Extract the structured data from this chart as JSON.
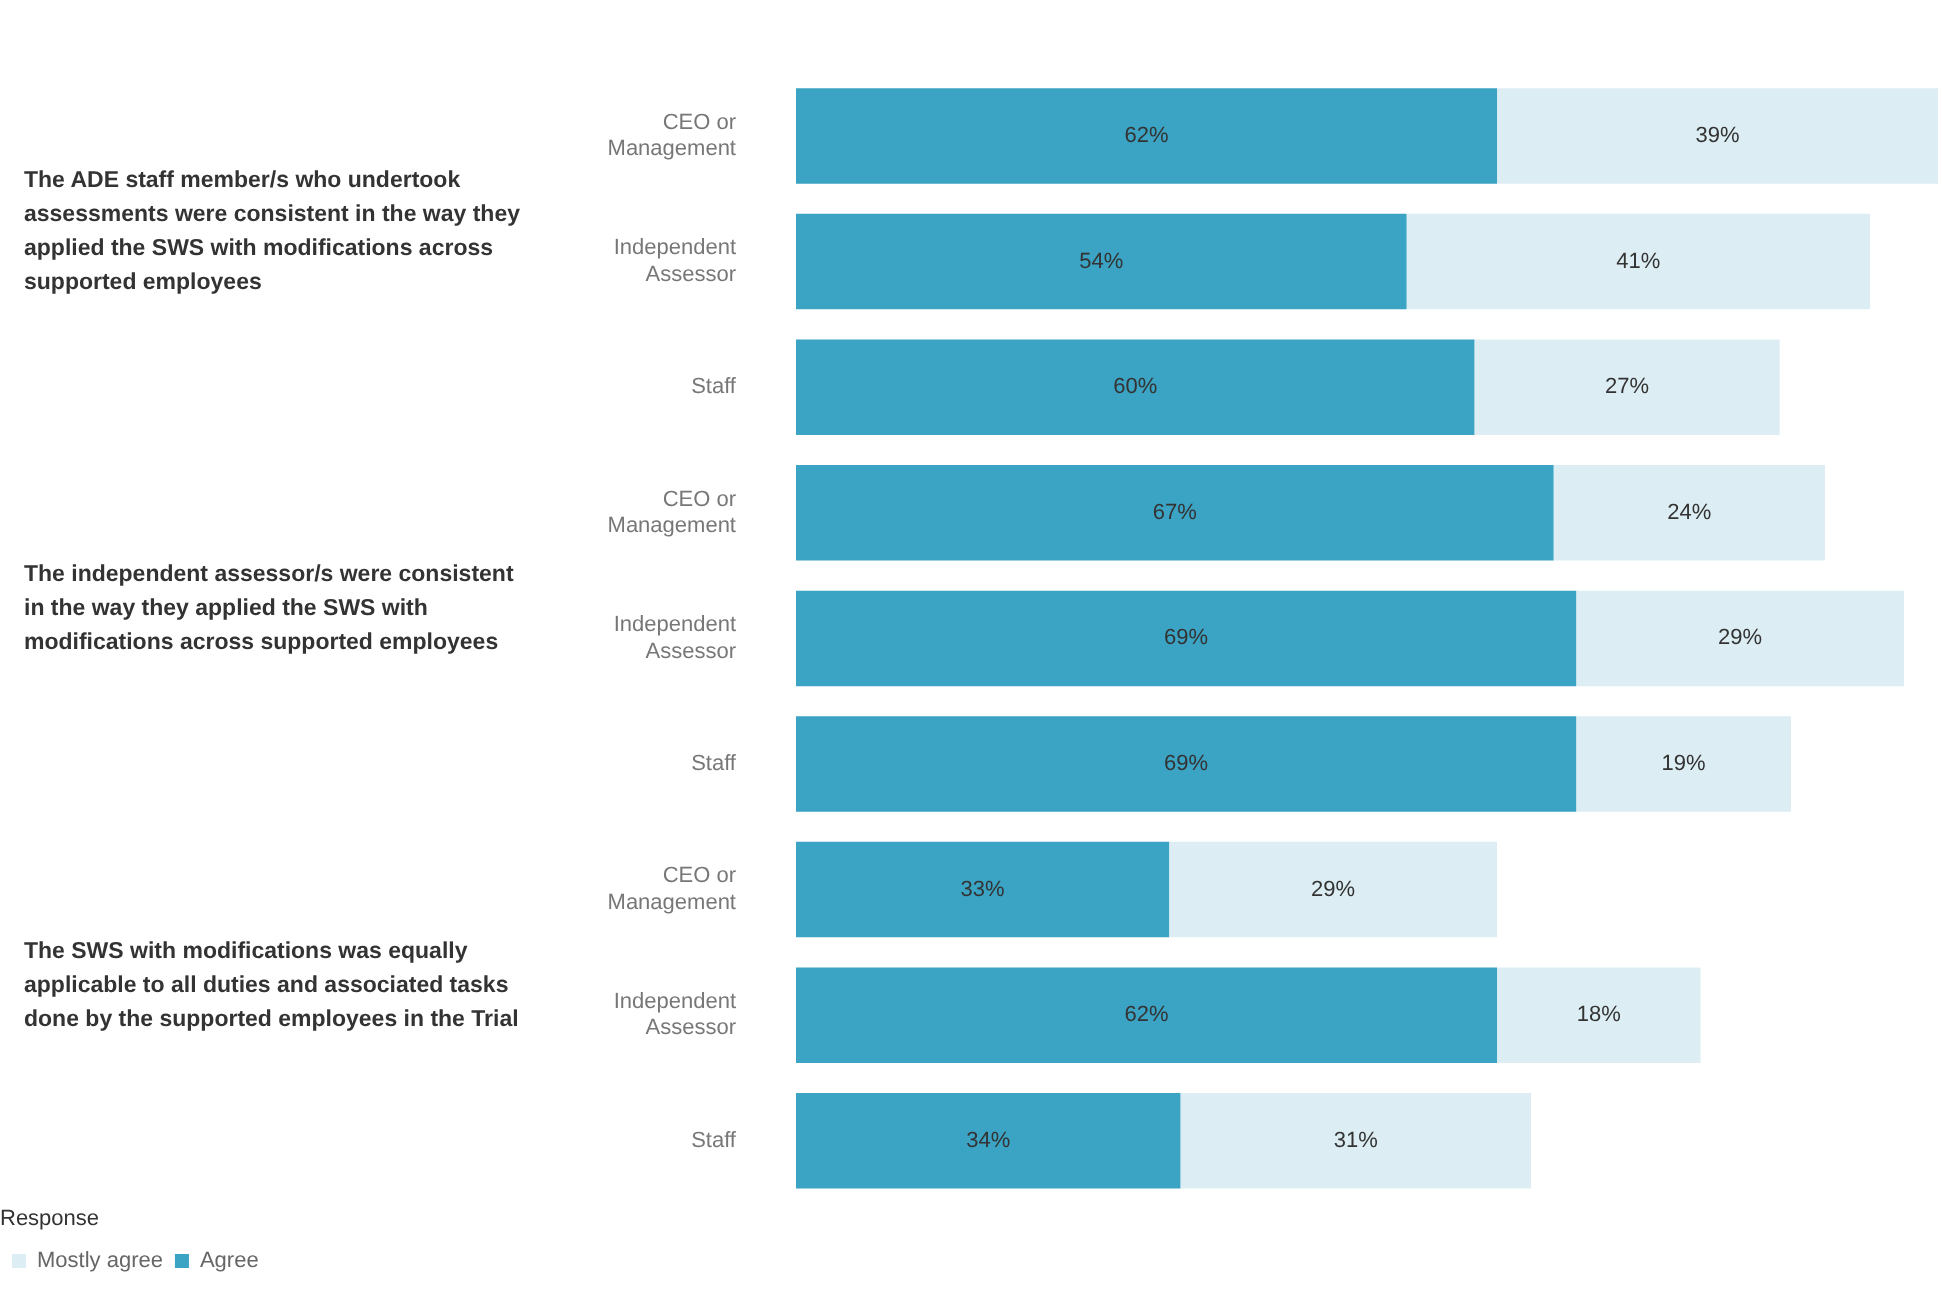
{
  "chart_data": {
    "type": "bar",
    "orientation": "horizontal",
    "stacked": true,
    "categories": [
      "CEO or Management",
      "Independent Assessor",
      "Staff",
      "CEO or Management",
      "Independent Assessor",
      "Staff",
      "CEO or Management",
      "Independent Assessor",
      "Staff"
    ],
    "series": [
      {
        "name": "Agree",
        "color": "#3ba3c3",
        "values": [
          62,
          54,
          60,
          67,
          69,
          69,
          33,
          62,
          34
        ],
        "value_labels": [
          "62%",
          "54%",
          "60%",
          "67%",
          "69%",
          "69%",
          "33%",
          "62%",
          "34%"
        ]
      },
      {
        "name": "Mostly agree",
        "color": "#dcedf3",
        "values": [
          39,
          41,
          27,
          24,
          29,
          19,
          29,
          18,
          31
        ],
        "value_labels": [
          "39%",
          "41%",
          "27%",
          "24%",
          "29%",
          "19%",
          "29%",
          "18%",
          "31%"
        ]
      }
    ],
    "tick_labels": "y",
    "grid": false,
    "legend": "bottom left",
    "legend_title": "Response",
    "annotations": [
      "The ADE staff member/s who undertook assessments were consistent in the way they applied the SWS with modifications across supported employees",
      "The independent assessor/s were consistent in the way they applied the SWS with modifications across supported employees",
      "The SWS with modifications was equally applicable to all duties and associated tasks done by the supported employees in the Trial"
    ]
  }
}
